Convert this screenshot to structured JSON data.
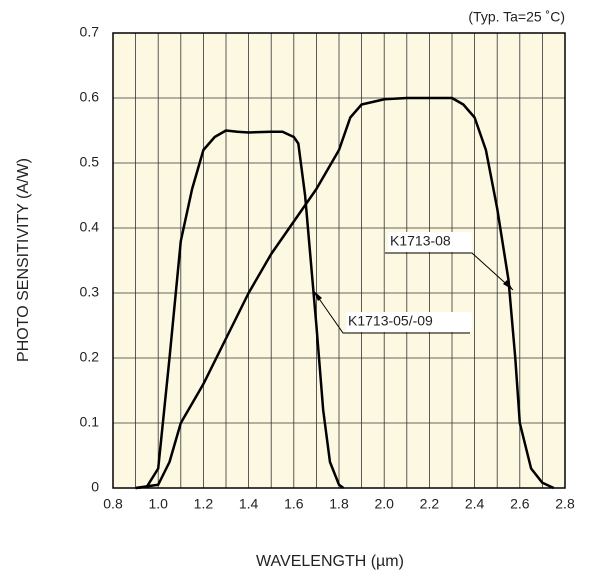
{
  "chart_data": {
    "type": "line",
    "annotation": "(Typ. Ta=25 ˚C)",
    "x_label": "WAVELENGTH (µm)",
    "y_label": "PHOTO SENSITIVITY (A/W)",
    "xlim": [
      0.8,
      2.8
    ],
    "ylim": [
      0,
      0.7
    ],
    "xticks": [
      0.8,
      {
        "value": 1,
        "label": "1.0"
      },
      1.2,
      1.4,
      1.6,
      1.8,
      {
        "value": 2,
        "label": "2.0"
      },
      2.2,
      2.4,
      2.6,
      2.8
    ],
    "yticks": [
      0,
      0.1,
      0.2,
      0.3,
      0.4,
      0.5,
      0.6,
      0.7
    ],
    "xgrid": [
      0.9,
      1.1,
      1.3,
      1.5,
      1.7,
      1.9,
      2.1,
      2.3,
      2.5,
      2.7
    ],
    "grid": true,
    "series": [
      {
        "name": "K1713-05/-09",
        "color": "#000000",
        "x": [
          0.9,
          0.95,
          1.0,
          1.05,
          1.1,
          1.15,
          1.2,
          1.25,
          1.3,
          1.35,
          1.4,
          1.5,
          1.55,
          1.6,
          1.62,
          1.65,
          1.68,
          1.7,
          1.73,
          1.76,
          1.8,
          1.82
        ],
        "values": [
          0,
          0.002,
          0.03,
          0.2,
          0.38,
          0.46,
          0.52,
          0.54,
          0.55,
          0.548,
          0.547,
          0.548,
          0.548,
          0.54,
          0.53,
          0.45,
          0.33,
          0.25,
          0.12,
          0.04,
          0.005,
          0
        ]
      },
      {
        "name": "K1713-08",
        "color": "#000000",
        "x": [
          0.9,
          1.0,
          1.05,
          1.1,
          1.2,
          1.3,
          1.4,
          1.5,
          1.6,
          1.7,
          1.8,
          1.85,
          1.9,
          2.0,
          2.1,
          2.3,
          2.35,
          2.4,
          2.45,
          2.5,
          2.55,
          2.58,
          2.6,
          2.65,
          2.7,
          2.75
        ],
        "values": [
          0,
          0.005,
          0.04,
          0.1,
          0.16,
          0.23,
          0.3,
          0.36,
          0.41,
          0.46,
          0.52,
          0.57,
          0.59,
          0.598,
          0.6,
          0.6,
          0.59,
          0.57,
          0.52,
          0.43,
          0.32,
          0.2,
          0.1,
          0.03,
          0.008,
          0
        ]
      }
    ]
  }
}
